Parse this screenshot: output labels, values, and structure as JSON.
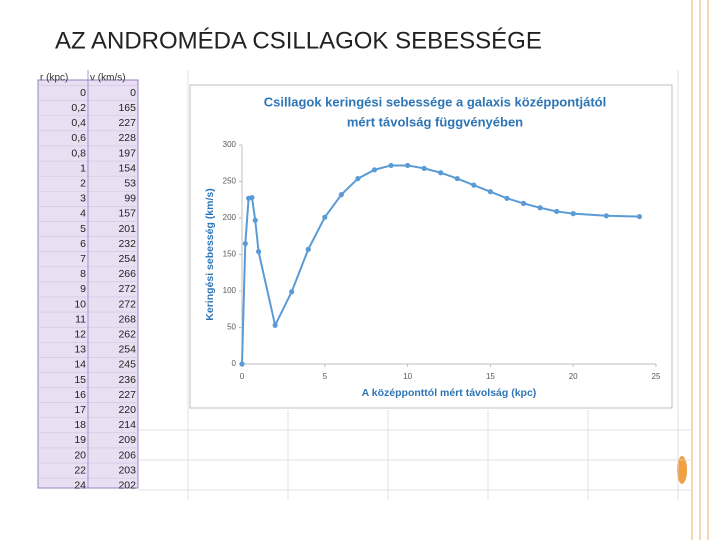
{
  "slide_title": "AZ ANDROMÉDA CSILLAGOK SEBESSÉGE",
  "table": {
    "headers": [
      "r (kpc)",
      "v (km/s)"
    ],
    "rows": [
      [
        "0",
        "0"
      ],
      [
        "0,2",
        "165"
      ],
      [
        "0,4",
        "227"
      ],
      [
        "0,6",
        "228"
      ],
      [
        "0,8",
        "197"
      ],
      [
        "1",
        "154"
      ],
      [
        "2",
        "53"
      ],
      [
        "3",
        "99"
      ],
      [
        "4",
        "157"
      ],
      [
        "5",
        "201"
      ],
      [
        "6",
        "232"
      ],
      [
        "7",
        "254"
      ],
      [
        "8",
        "266"
      ],
      [
        "9",
        "272"
      ],
      [
        "10",
        "272"
      ],
      [
        "11",
        "268"
      ],
      [
        "12",
        "262"
      ],
      [
        "13",
        "254"
      ],
      [
        "14",
        "245"
      ],
      [
        "15",
        "236"
      ],
      [
        "16",
        "227"
      ],
      [
        "17",
        "220"
      ],
      [
        "18",
        "214"
      ],
      [
        "19",
        "209"
      ],
      [
        "20",
        "206"
      ],
      [
        "22",
        "203"
      ],
      [
        "24",
        "202"
      ]
    ]
  },
  "chart_data": {
    "type": "line",
    "title": [
      "Csillagok keringési sebessége a galaxis középpontjától",
      "mért távolság függvényében"
    ],
    "x_label": "A középponttól mért távolság (kpc)",
    "y_label": "Keringési sebesség (km/s)",
    "x": [
      0,
      0.2,
      0.4,
      0.6,
      0.8,
      1,
      2,
      3,
      4,
      5,
      6,
      7,
      8,
      9,
      10,
      11,
      12,
      13,
      14,
      15,
      16,
      17,
      18,
      19,
      20,
      22,
      24
    ],
    "values": [
      0,
      165,
      227,
      228,
      197,
      154,
      53,
      99,
      157,
      201,
      232,
      254,
      266,
      272,
      272,
      268,
      262,
      254,
      245,
      236,
      227,
      220,
      214,
      209,
      206,
      203,
      202
    ],
    "color": "#5b9bd5",
    "xlim": [
      0,
      25
    ],
    "xticks": [
      0,
      5,
      10,
      15,
      20,
      25
    ],
    "ylim": [
      0,
      300
    ],
    "yticks": [
      0,
      50,
      100,
      150,
      200,
      250,
      300
    ]
  }
}
